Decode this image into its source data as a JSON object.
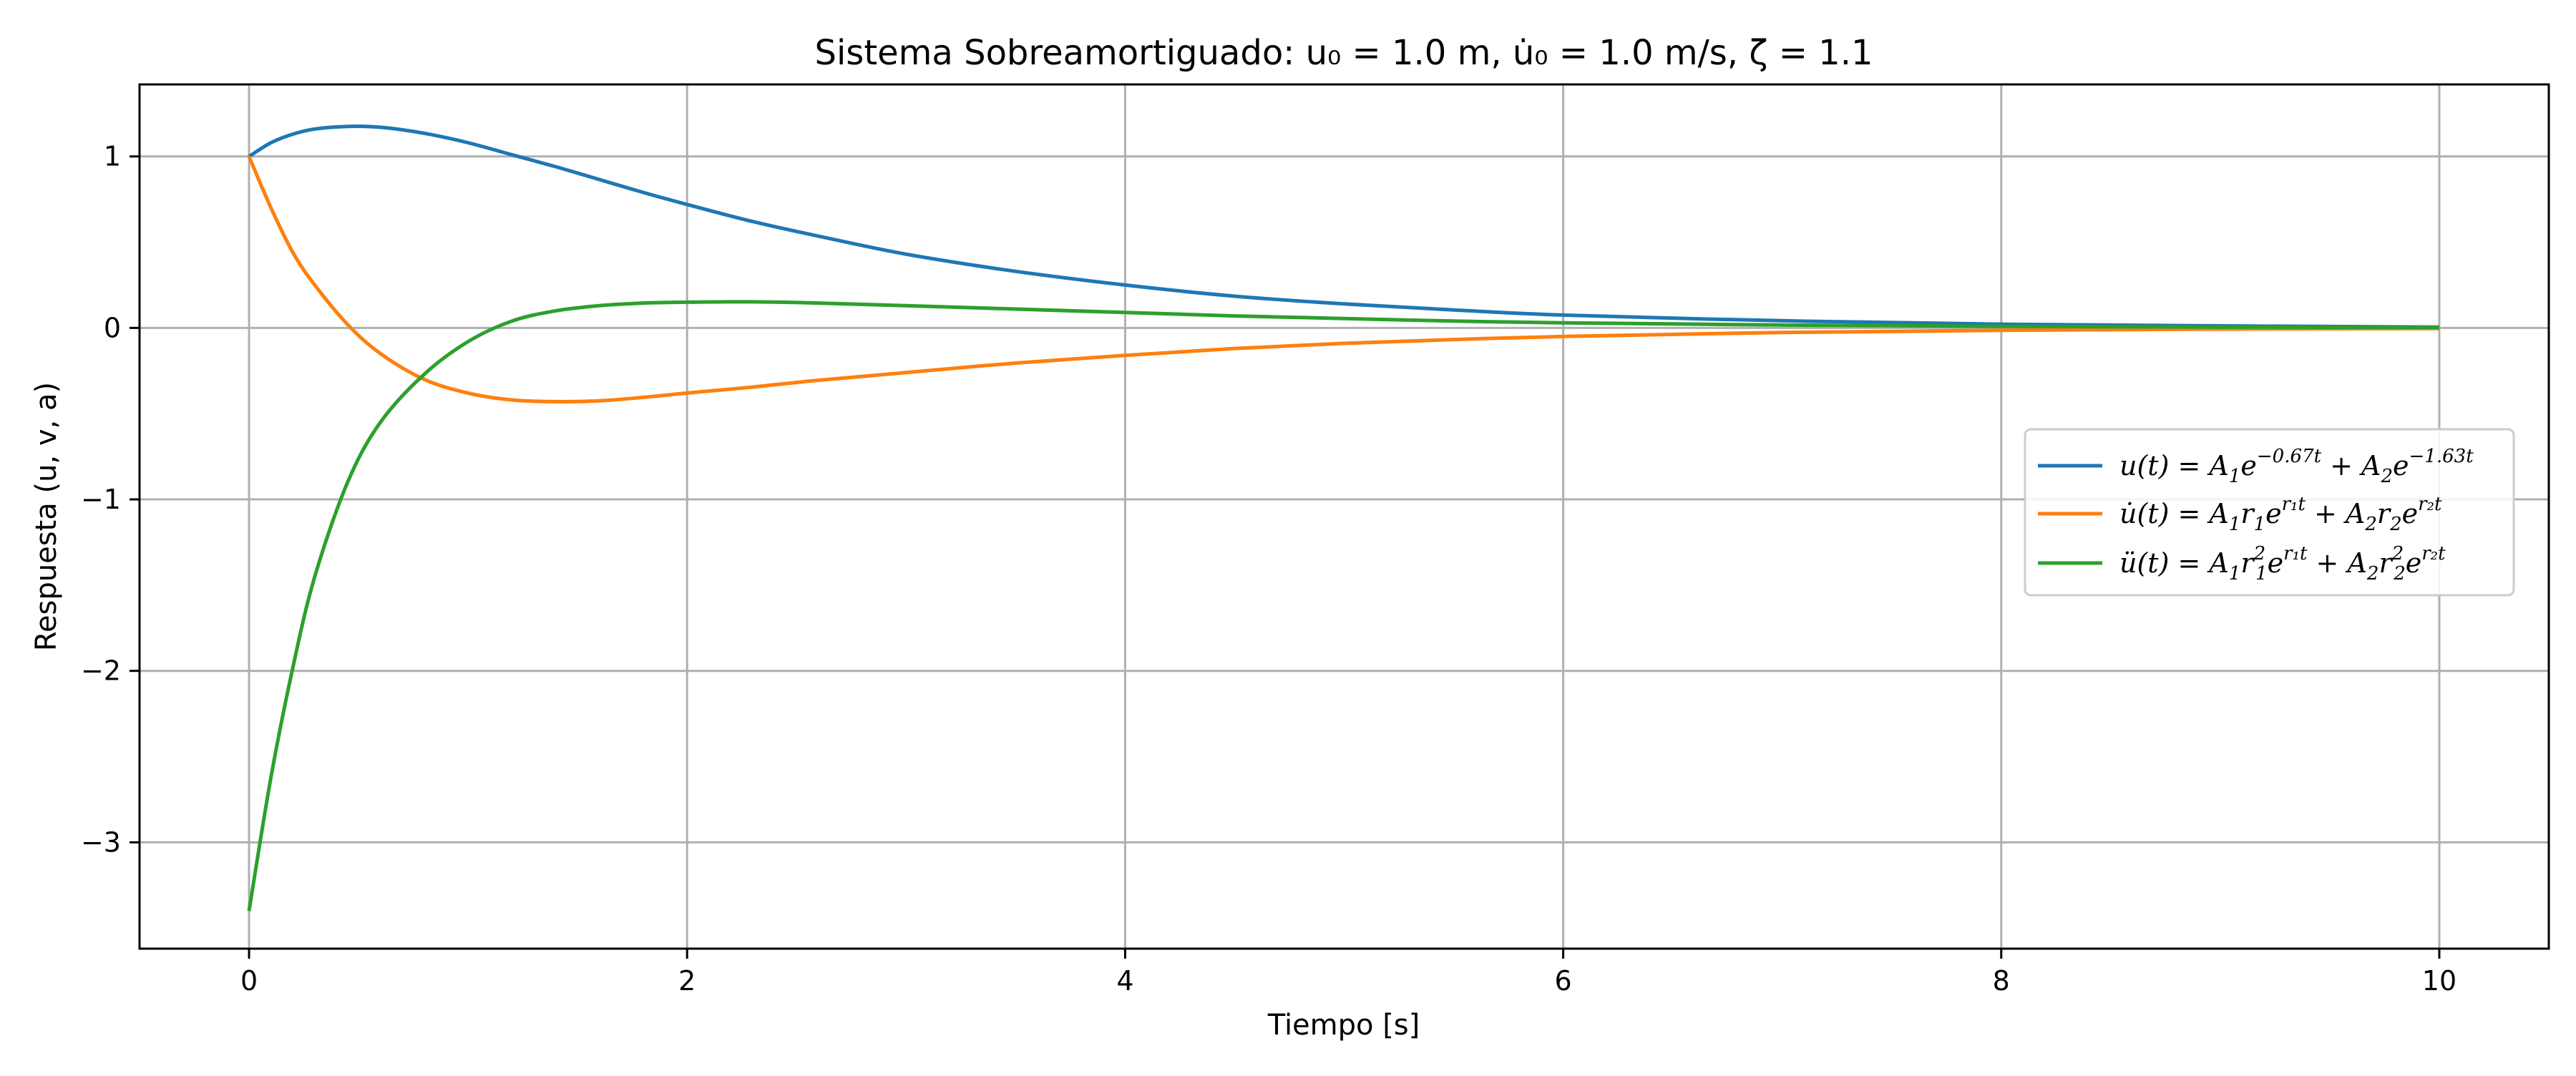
{
  "chart_data": {
    "type": "line",
    "title": "Sistema Sobreamortiguado: u₀ = 1.0 m, u̇₀ = 1.0 m/s, ζ = 1.1",
    "xlabel": "Tiempo [s]",
    "ylabel": "Respuesta (u, v, a)",
    "xlim": [
      -0.5,
      10.5
    ],
    "ylim": [
      -3.62,
      1.42
    ],
    "x_ticks": [
      0,
      2,
      4,
      6,
      8,
      10
    ],
    "x_tick_labels": [
      "0",
      "2",
      "4",
      "6",
      "8",
      "10"
    ],
    "y_ticks": [
      -3,
      -2,
      -1,
      0,
      1
    ],
    "y_tick_labels": [
      "−3",
      "−2",
      "−1",
      "0",
      "1"
    ],
    "grid": true,
    "legend_position": "center-right",
    "x": [
      0,
      0.1,
      0.2,
      0.3,
      0.45,
      0.6,
      0.8,
      1.0,
      1.2,
      1.4,
      1.6,
      1.8,
      2.0,
      2.3,
      2.6,
      3.0,
      3.5,
      4.0,
      4.5,
      5.0,
      5.5,
      6.0,
      7.0,
      8.0,
      9.0,
      10.0
    ],
    "series": [
      {
        "name": "u(t) = A₁e^(−0.67t) + A₂e^(−1.63t)",
        "color": "#1f77b4",
        "values": [
          1.0,
          1.08,
          1.13,
          1.16,
          1.175,
          1.17,
          1.135,
          1.08,
          1.01,
          0.94,
          0.865,
          0.79,
          0.72,
          0.62,
          0.535,
          0.43,
          0.33,
          0.25,
          0.185,
          0.14,
          0.105,
          0.075,
          0.042,
          0.022,
          0.012,
          0.005
        ]
      },
      {
        "name": "u̇(t) = A₁r₁e^(r₁t) + A₂r₂e^(r₂t)",
        "color": "#ff7f0e",
        "values": [
          1.0,
          0.7,
          0.44,
          0.25,
          0.02,
          -0.15,
          -0.3,
          -0.38,
          -0.42,
          -0.43,
          -0.425,
          -0.405,
          -0.38,
          -0.345,
          -0.305,
          -0.26,
          -0.205,
          -0.16,
          -0.12,
          -0.09,
          -0.068,
          -0.05,
          -0.027,
          -0.014,
          -0.007,
          -0.003
        ]
      },
      {
        "name": "ü(t) = A₁r₁²e^(r₁t) + A₂r₂²e^(r₂t)",
        "color": "#2ca02c",
        "values": [
          -3.4,
          -2.62,
          -1.98,
          -1.45,
          -0.9,
          -0.55,
          -0.27,
          -0.08,
          0.04,
          0.1,
          0.13,
          0.145,
          0.15,
          0.152,
          0.145,
          0.13,
          0.11,
          0.09,
          0.07,
          0.055,
          0.04,
          0.03,
          0.017,
          0.009,
          0.005,
          0.002
        ]
      }
    ]
  }
}
